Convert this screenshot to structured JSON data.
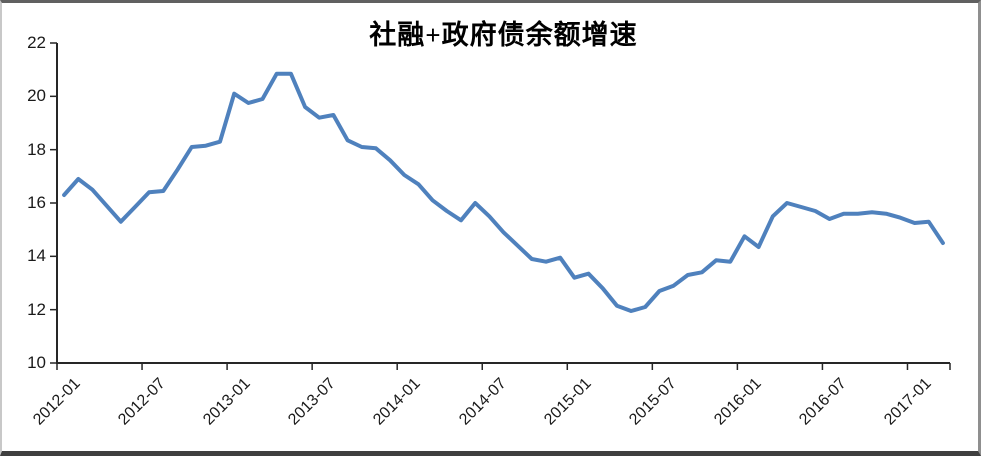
{
  "chart_data": {
    "type": "line",
    "title": "社融+政府债余额增速",
    "xlabel": "",
    "ylabel": "",
    "ylim": [
      10,
      22
    ],
    "yticks": [
      22,
      20,
      18,
      16,
      14,
      12,
      10
    ],
    "xtick_labels": [
      "2012-01",
      "2012-07",
      "2013-01",
      "2013-07",
      "2014-01",
      "2014-07",
      "2015-01",
      "2015-07",
      "2016-01",
      "2016-07",
      "2017-01"
    ],
    "grid": false,
    "legend_position": "none",
    "line_color": "#4f81bd",
    "axis_color": "#262626",
    "x": [
      "2012-01",
      "2012-02",
      "2012-03",
      "2012-04",
      "2012-05",
      "2012-06",
      "2012-07",
      "2012-08",
      "2012-09",
      "2012-10",
      "2012-11",
      "2012-12",
      "2013-01",
      "2013-02",
      "2013-03",
      "2013-04",
      "2013-05",
      "2013-06",
      "2013-07",
      "2013-08",
      "2013-09",
      "2013-10",
      "2013-11",
      "2013-12",
      "2014-01",
      "2014-02",
      "2014-03",
      "2014-04",
      "2014-05",
      "2014-06",
      "2014-07",
      "2014-08",
      "2014-09",
      "2014-10",
      "2014-11",
      "2014-12",
      "2015-01",
      "2015-02",
      "2015-03",
      "2015-04",
      "2015-05",
      "2015-06",
      "2015-07",
      "2015-08",
      "2015-09",
      "2015-10",
      "2015-11",
      "2015-12",
      "2016-01",
      "2016-02",
      "2016-03",
      "2016-04",
      "2016-05",
      "2016-06",
      "2016-07",
      "2016-08",
      "2016-09",
      "2016-10",
      "2016-11",
      "2016-12",
      "2017-01",
      "2017-02",
      "2017-03"
    ],
    "values": [
      16.3,
      16.9,
      16.5,
      15.9,
      15.3,
      15.85,
      16.4,
      16.45,
      17.25,
      18.1,
      18.15,
      18.3,
      20.1,
      19.75,
      19.9,
      20.85,
      20.85,
      19.6,
      19.2,
      19.3,
      18.35,
      18.1,
      18.05,
      17.6,
      17.05,
      16.7,
      16.1,
      15.7,
      15.35,
      16.0,
      15.5,
      14.9,
      14.4,
      13.9,
      13.8,
      13.95,
      13.2,
      13.35,
      12.8,
      12.15,
      11.95,
      12.1,
      12.7,
      12.9,
      13.3,
      13.4,
      13.85,
      13.8,
      14.75,
      14.35,
      15.5,
      16.0,
      15.85,
      15.7,
      15.4,
      15.6,
      15.6,
      15.65,
      15.6,
      15.45,
      15.25,
      15.3,
      14.5
    ]
  }
}
